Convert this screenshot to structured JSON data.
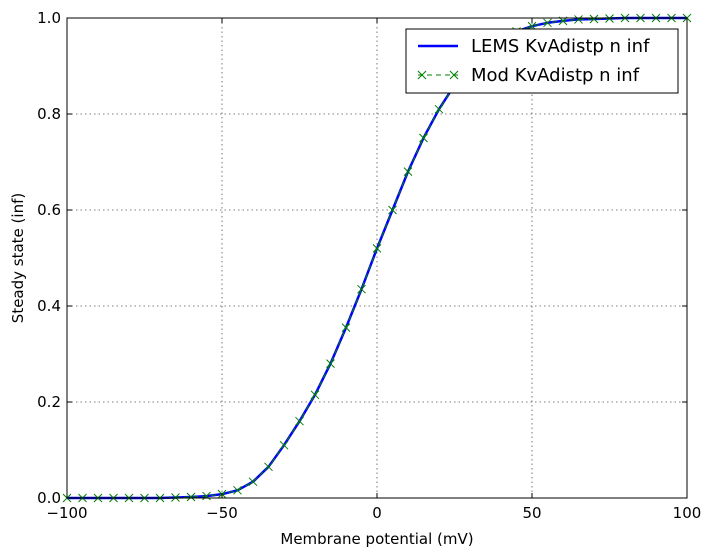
{
  "chart_data": {
    "type": "line",
    "xlabel": "Membrane potential (mV)",
    "ylabel": "Steady state (inf)",
    "xlim": [
      -100,
      100
    ],
    "ylim": [
      0.0,
      1.0
    ],
    "xticks": [
      -100,
      -50,
      0,
      50,
      100
    ],
    "xtick_labels": [
      "−100",
      "−50",
      "0",
      "50",
      "100"
    ],
    "yticks": [
      0.0,
      0.2,
      0.4,
      0.6,
      0.8,
      1.0
    ],
    "ytick_labels": [
      "0.0",
      "0.2",
      "0.4",
      "0.6",
      "0.8",
      "1.0"
    ],
    "grid": true,
    "legend_position": "top-right",
    "x": [
      -100,
      -95,
      -90,
      -85,
      -80,
      -75,
      -70,
      -65,
      -60,
      -55,
      -50,
      -45,
      -40,
      -35,
      -30,
      -25,
      -20,
      -15,
      -10,
      -5,
      0,
      5,
      10,
      15,
      20,
      25,
      30,
      35,
      40,
      45,
      50,
      55,
      60,
      65,
      70,
      75,
      80,
      85,
      90,
      95,
      100
    ],
    "series": [
      {
        "name": "LEMS KvAdistp n inf",
        "color": "#0000ff",
        "style": "solid",
        "values": [
          0.0,
          0.0,
          0.0,
          0.0,
          0.0,
          0.0,
          0.0,
          0.001,
          0.002,
          0.004,
          0.008,
          0.016,
          0.034,
          0.065,
          0.11,
          0.16,
          0.215,
          0.28,
          0.355,
          0.435,
          0.52,
          0.6,
          0.68,
          0.75,
          0.81,
          0.86,
          0.9,
          0.93,
          0.955,
          0.972,
          0.983,
          0.99,
          0.994,
          0.997,
          0.998,
          0.999,
          1.0,
          1.0,
          1.0,
          1.0,
          1.0
        ]
      },
      {
        "name": "Mod KvAdistp n inf",
        "color": "#008000",
        "style": "dashed-x",
        "values": [
          0.0,
          0.0,
          0.0,
          0.0,
          0.0,
          0.0,
          0.0,
          0.001,
          0.002,
          0.004,
          0.008,
          0.016,
          0.034,
          0.065,
          0.11,
          0.16,
          0.215,
          0.28,
          0.355,
          0.435,
          0.52,
          0.6,
          0.68,
          0.75,
          0.81,
          0.86,
          0.9,
          0.93,
          0.955,
          0.972,
          0.983,
          0.99,
          0.994,
          0.997,
          0.998,
          0.999,
          1.0,
          1.0,
          1.0,
          1.0,
          1.0
        ]
      }
    ]
  }
}
